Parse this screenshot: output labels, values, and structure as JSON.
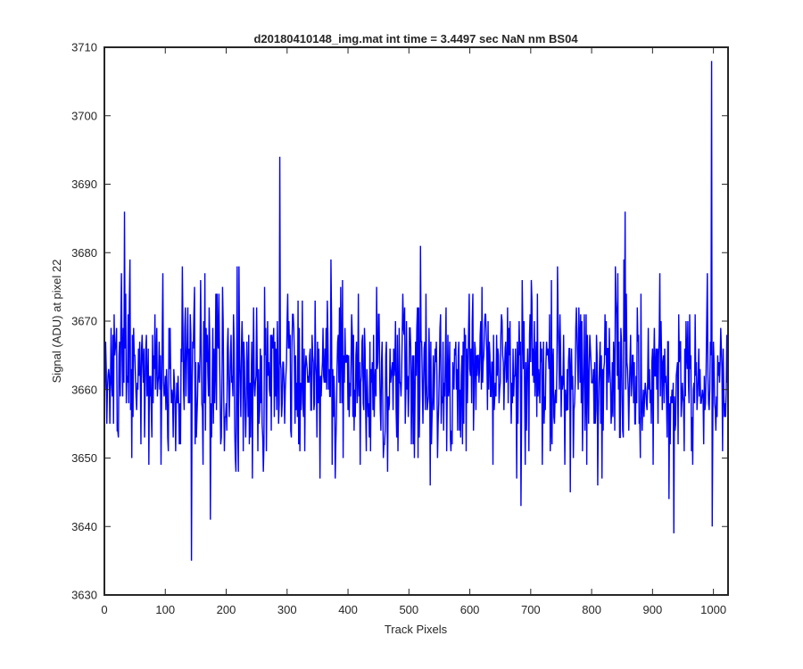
{
  "chart_data": {
    "type": "line",
    "title": "d20180410148_img.mat int time = 3.4497 sec  NaN nm BS04",
    "xlabel": "Track Pixels",
    "ylabel": "Signal (ADU) at pixel 22",
    "xlim": [
      0,
      1024
    ],
    "ylim": [
      3630,
      3710
    ],
    "xticks": [
      0,
      100,
      200,
      300,
      400,
      500,
      600,
      700,
      800,
      900,
      1000
    ],
    "yticks": [
      3630,
      3640,
      3650,
      3660,
      3670,
      3680,
      3690,
      3700,
      3710
    ],
    "grid": false,
    "series": [
      {
        "color": "#0000ff",
        "x_start": 1,
        "x_end": 1024,
        "baseline": 3662,
        "noise_sd": 6.2,
        "n_points": 1024,
        "notable_points": [
          {
            "x": 33,
            "y": 3686
          },
          {
            "x": 143,
            "y": 3635
          },
          {
            "x": 174,
            "y": 3641
          },
          {
            "x": 288,
            "y": 3694
          },
          {
            "x": 855,
            "y": 3686
          },
          {
            "x": 935,
            "y": 3639
          },
          {
            "x": 997,
            "y": 3708
          },
          {
            "x": 998,
            "y": 3640
          }
        ]
      }
    ]
  }
}
